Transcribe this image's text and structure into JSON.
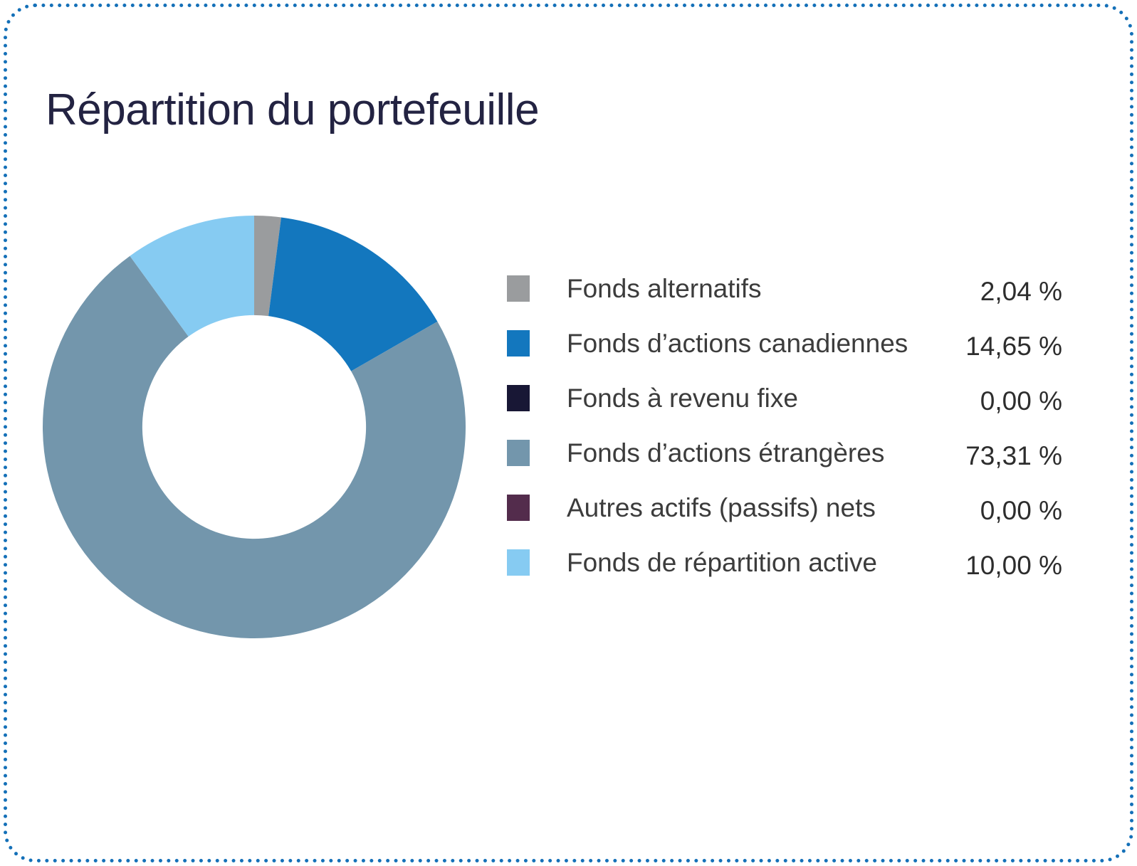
{
  "title": "Répartition du portefeuille",
  "border": {
    "color": "#1470b8"
  },
  "chart_data": {
    "type": "pie",
    "variant": "donut",
    "title": "Répartition du portefeuille",
    "start_angle_deg": 0,
    "direction": "clockwise",
    "inner_radius_ratio": 0.529,
    "legend_position": "right",
    "series": [
      {
        "label": "Fonds alternatifs",
        "value": 2.04,
        "display": "2,04 %",
        "color": "#9a9c9e"
      },
      {
        "label": "Fonds d’actions canadiennes",
        "value": 14.65,
        "display": "14,65 %",
        "color": "#1377be"
      },
      {
        "label": "Fonds à revenu fixe",
        "value": 0.0,
        "display": "0,00 %",
        "color": "#181735"
      },
      {
        "label": "Fonds d’actions étrangères",
        "value": 73.31,
        "display": "73,31 %",
        "color": "#7396ac"
      },
      {
        "label": "Autres actifs (passifs) nets",
        "value": 0.0,
        "display": "0,00 %",
        "color": "#532c4c"
      },
      {
        "label": "Fonds de répartition active",
        "value": 10.0,
        "display": "10,00 %",
        "color": "#86cbf2"
      }
    ]
  }
}
